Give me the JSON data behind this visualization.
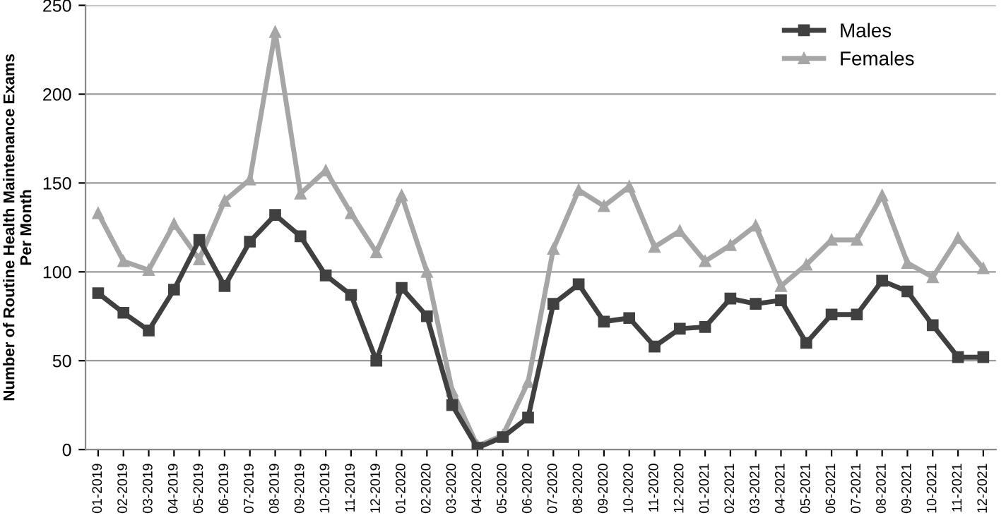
{
  "chart_data": {
    "type": "line",
    "ylabel": "Number of Routine Health Maintenance Exams\nPer Month",
    "categories": [
      "01-2019",
      "02-2019",
      "03-2019",
      "04-2019",
      "05-2019",
      "06-2019",
      "07-2019",
      "08-2019",
      "09-2019",
      "10-2019",
      "11-2019",
      "12-2019",
      "01-2020",
      "02-2020",
      "03-2020",
      "04-2020",
      "05-2020",
      "06-2020",
      "07-2020",
      "08-2020",
      "09-2020",
      "10-2020",
      "11-2020",
      "12-2020",
      "01-2021",
      "02-2021",
      "03-2021",
      "04-2021",
      "05-2021",
      "06-2021",
      "07-2021",
      "08-2021",
      "09-2021",
      "10-2021",
      "11-2021",
      "12-2021"
    ],
    "series": [
      {
        "name": "Males",
        "color": "#404040",
        "marker": "square",
        "values": [
          88,
          77,
          67,
          90,
          118,
          92,
          117,
          132,
          120,
          98,
          87,
          50,
          91,
          75,
          25,
          1,
          7,
          18,
          82,
          93,
          72,
          74,
          58,
          68,
          69,
          85,
          82,
          84,
          60,
          76,
          76,
          95,
          89,
          70,
          52,
          52
        ]
      },
      {
        "name": "Females",
        "color": "#a6a6a6",
        "marker": "triangle",
        "values": [
          133,
          106,
          101,
          127,
          107,
          140,
          152,
          235,
          144,
          157,
          133,
          111,
          143,
          100,
          33,
          2,
          8,
          38,
          113,
          146,
          137,
          148,
          114,
          123,
          106,
          115,
          126,
          92,
          104,
          118,
          118,
          143,
          105,
          97,
          119,
          102
        ]
      }
    ],
    "ylim": [
      0,
      250
    ],
    "yticks": [
      0,
      50,
      100,
      150,
      200,
      250
    ],
    "grid": "y",
    "legend": "top right",
    "line_style": "solid"
  }
}
